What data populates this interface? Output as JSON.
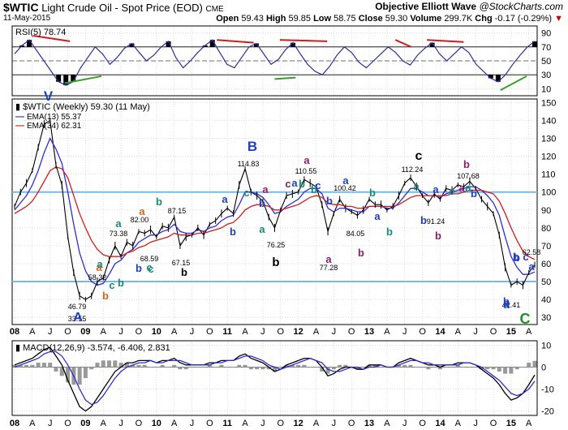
{
  "header": {
    "symbol": "$WTIC",
    "name": "Light Crude Oil - Spot Price (EOD)",
    "exchange": "CME",
    "date": "11-May-2015",
    "brand_prefix": "Objective Elliott Wave",
    "brand_site": "@StockCharts.com",
    "quote": {
      "open_label": "Open",
      "open": "59.43",
      "high_label": "High",
      "high": "59.85",
      "low_label": "Low",
      "low": "58.75",
      "close_label": "Close",
      "close": "59.30",
      "volume_label": "Volume",
      "volume": "299.7K",
      "chg_label": "Chg",
      "chg": "-0.17 (-0.29%)",
      "chg_arrow": "▼",
      "chg_color": "#cc0000"
    }
  },
  "colors": {
    "price": "#000000",
    "ema13": "#2d2dd0",
    "ema34": "#d01c1c",
    "rsi": "#2d2d9e",
    "rsi_fill": "#000000",
    "macd": "#000000",
    "macd_signal": "#2d2dd0",
    "histogram": "#999999",
    "hline": "#7ab8e6",
    "grid": "#c8c8c8",
    "trend_red": "#d01c1c",
    "trend_green": "#3a9e2a",
    "wave_blue": "#1f3fbf",
    "wave_teal": "#1a8a7a",
    "wave_orange": "#d8641c",
    "wave_purple": "#8a1f6f",
    "wave_green": "#2a8a2a",
    "wave_black": "#000000"
  },
  "chart_data": [
    {
      "type": "line",
      "panel": "rsi",
      "title": "RSI(5) 78.74",
      "ylim": [
        0,
        100
      ],
      "yticks": [
        10,
        30,
        50,
        70,
        90
      ],
      "reference_lines": [
        30,
        70
      ],
      "series": [
        {
          "name": "RSI(5)",
          "values": [
            60,
            72,
            80,
            65,
            50,
            35,
            20,
            15,
            20,
            40,
            55,
            70,
            60,
            45,
            55,
            68,
            75,
            62,
            50,
            58,
            70,
            78,
            55,
            40,
            50,
            62,
            72,
            80,
            62,
            45,
            40,
            55,
            70,
            75,
            60,
            45,
            52,
            66,
            76,
            60,
            45,
            35,
            30,
            42,
            58,
            70,
            62,
            48,
            40,
            50,
            60,
            70,
            62,
            50,
            44,
            58,
            68,
            76,
            60,
            50,
            60,
            70,
            62,
            45,
            35,
            25,
            20,
            30,
            45,
            58,
            70,
            78
          ]
        }
      ],
      "last_value": "78.74"
    },
    {
      "type": "line",
      "panel": "price",
      "title": "$WTIC (Weekly) 59.30 (11 May)",
      "ylim": [
        26,
        152
      ],
      "yticks": [
        30,
        40,
        50,
        60,
        70,
        80,
        90,
        100,
        110,
        120,
        130,
        140,
        150
      ],
      "reference_lines": [
        50,
        100
      ],
      "x_dates": [
        "2008-01",
        "2008-02",
        "2008-03",
        "2008-04",
        "2008-05",
        "2008-06",
        "2008-07",
        "2008-08",
        "2008-09",
        "2008-10",
        "2008-11",
        "2008-12",
        "2009-01",
        "2009-02",
        "2009-03",
        "2009-04",
        "2009-05",
        "2009-06",
        "2009-07",
        "2009-08",
        "2009-09",
        "2009-10",
        "2009-11",
        "2009-12",
        "2010-01",
        "2010-02",
        "2010-03",
        "2010-04",
        "2010-05",
        "2010-06",
        "2010-07",
        "2010-08",
        "2010-09",
        "2010-10",
        "2010-11",
        "2010-12",
        "2011-01",
        "2011-02",
        "2011-03",
        "2011-04",
        "2011-05",
        "2011-06",
        "2011-07",
        "2011-08",
        "2011-09",
        "2011-10",
        "2011-11",
        "2011-12",
        "2012-01",
        "2012-02",
        "2012-03",
        "2012-04",
        "2012-05",
        "2012-06",
        "2012-07",
        "2012-08",
        "2012-09",
        "2012-10",
        "2012-11",
        "2012-12",
        "2013-01",
        "2013-02",
        "2013-03",
        "2013-04",
        "2013-05",
        "2013-06",
        "2013-07",
        "2013-08",
        "2013-09",
        "2013-10",
        "2013-11",
        "2013-12",
        "2014-01",
        "2014-02",
        "2014-03",
        "2014-04",
        "2014-05",
        "2014-06",
        "2014-07",
        "2014-08",
        "2014-09",
        "2014-10",
        "2014-11",
        "2014-12",
        "2015-01",
        "2015-02",
        "2015-03",
        "2015-04",
        "2015-05"
      ],
      "series": [
        {
          "name": "$WTIC (Weekly) 59.30 (11 May)",
          "values": [
            92,
            100,
            105,
            112,
            125,
            138,
            140,
            115,
            104,
            75,
            55,
            42,
            40,
            42,
            50,
            52,
            62,
            70,
            64,
            72,
            70,
            78,
            77,
            79,
            75,
            81,
            80,
            86,
            70,
            75,
            76,
            80,
            76,
            82,
            84,
            88,
            91,
            88,
            104,
            113,
            100,
            98,
            95,
            86,
            80,
            90,
            98,
            99,
            100,
            107,
            105,
            103,
            93,
            78,
            88,
            96,
            91,
            89,
            87,
            90,
            96,
            93,
            93,
            90,
            92,
            98,
            105,
            108,
            103,
            98,
            94,
            99,
            96,
            102,
            101,
            104,
            103,
            106,
            102,
            96,
            92,
            88,
            76,
            58,
            48,
            50,
            48,
            55,
            59.3
          ]
        },
        {
          "name": "EMA(13) 55.37",
          "values": [
            90,
            94,
            98,
            104,
            112,
            122,
            130,
            124,
            116,
            100,
            82,
            66,
            56,
            50,
            48,
            49,
            54,
            60,
            62,
            66,
            68,
            72,
            74,
            76,
            76,
            78,
            79,
            82,
            78,
            77,
            77,
            79,
            78,
            80,
            81,
            84,
            86,
            87,
            93,
            100,
            100,
            99,
            97,
            93,
            88,
            89,
            92,
            94,
            96,
            100,
            102,
            102,
            99,
            91,
            89,
            91,
            91,
            90,
            89,
            89,
            92,
            92,
            92,
            91,
            91,
            94,
            98,
            102,
            102,
            100,
            98,
            98,
            97,
            99,
            100,
            101,
            102,
            103,
            103,
            101,
            98,
            94,
            87,
            75,
            64,
            58,
            54,
            54,
            55.37
          ]
        },
        {
          "name": "EMA(34) 62.31",
          "values": [
            88,
            90,
            92,
            95,
            100,
            106,
            112,
            114,
            113,
            108,
            98,
            88,
            80,
            73,
            68,
            65,
            64,
            64,
            64,
            66,
            67,
            69,
            70,
            72,
            73,
            74,
            75,
            77,
            76,
            76,
            76,
            77,
            77,
            78,
            79,
            80,
            82,
            83,
            86,
            90,
            92,
            93,
            93,
            92,
            90,
            90,
            91,
            92,
            93,
            95,
            97,
            98,
            97,
            94,
            93,
            93,
            92,
            92,
            91,
            91,
            92,
            92,
            92,
            92,
            92,
            93,
            95,
            97,
            98,
            98,
            98,
            98,
            98,
            98,
            99,
            99,
            100,
            101,
            101,
            101,
            100,
            99,
            95,
            88,
            80,
            73,
            67,
            64,
            62.31
          ]
        }
      ],
      "ema_labels": [
        "EMA(13) 55.37",
        "EMA(34) 62.31"
      ],
      "annotations": {
        "price_labels": [
          "33.55",
          "46.79",
          "58.32",
          "73.38",
          "82.00",
          "87.15",
          "68.59",
          "67.15",
          "114.83",
          "76.25",
          "110.55",
          "77.28",
          "100.42",
          "84.05",
          "112.24",
          "91.24",
          "107.68",
          "42.41",
          "62.58"
        ],
        "wave_labels": [
          "V",
          "A",
          "a",
          "b",
          "c",
          "a",
          "b",
          "a",
          "b",
          "c",
          "a",
          "b",
          "c",
          "b",
          "B",
          "a",
          "b",
          "c",
          "a",
          "b",
          "a",
          "b",
          "c",
          "a",
          "b",
          "a",
          "b",
          "c",
          "a",
          "b",
          "a",
          "b",
          "b",
          "a",
          "b",
          "c",
          "a",
          "b",
          "a",
          "b",
          "c",
          "a",
          "b",
          "a",
          "b",
          "a",
          "b",
          "c",
          "a",
          "b",
          "b",
          "a",
          "C"
        ]
      }
    },
    {
      "type": "line",
      "panel": "macd",
      "title": "MACD(12,26,9) -3.574, -6.406, 2.831",
      "ylim": [
        -22,
        12
      ],
      "yticks": [
        -20,
        -10,
        0,
        10
      ],
      "reference_lines": [
        0
      ],
      "series": [
        {
          "name": "MACD(12,26,9) -3.574",
          "values": [
            1,
            2,
            3,
            4,
            6,
            8,
            9,
            5,
            1,
            -6,
            -12,
            -18,
            -20,
            -18,
            -14,
            -10,
            -6,
            -2,
            0,
            2,
            2,
            3,
            3,
            3,
            2,
            3,
            3,
            4,
            2,
            1,
            1,
            1,
            1,
            2,
            2,
            3,
            3,
            3,
            5,
            6,
            4,
            3,
            2,
            0,
            -2,
            -1,
            1,
            2,
            3,
            4,
            4,
            3,
            0,
            -4,
            -3,
            -1,
            0,
            0,
            -1,
            -1,
            1,
            1,
            1,
            0,
            0,
            2,
            3,
            4,
            3,
            2,
            1,
            1,
            0,
            1,
            1,
            2,
            2,
            2,
            1,
            -1,
            -3,
            -5,
            -8,
            -12,
            -15,
            -14,
            -12,
            -8,
            -3.574
          ]
        },
        {
          "name": "Signal -6.406",
          "values": [
            0,
            1,
            2,
            3,
            4,
            6,
            7,
            7,
            5,
            1,
            -4,
            -10,
            -15,
            -17,
            -16,
            -13,
            -9,
            -5,
            -2,
            0,
            1,
            2,
            2,
            3,
            2,
            2,
            3,
            3,
            3,
            2,
            1,
            1,
            1,
            1,
            2,
            2,
            3,
            3,
            4,
            5,
            5,
            4,
            3,
            1,
            0,
            -1,
            0,
            1,
            2,
            3,
            4,
            3,
            2,
            -1,
            -2,
            -2,
            -1,
            0,
            0,
            -1,
            0,
            0,
            1,
            0,
            0,
            1,
            2,
            3,
            3,
            2,
            2,
            1,
            1,
            1,
            1,
            1,
            2,
            2,
            1,
            0,
            -2,
            -4,
            -6,
            -9,
            -12,
            -13,
            -12,
            -10,
            -6.406
          ]
        }
      ],
      "histogram": [
        1,
        1,
        1,
        1,
        2,
        2,
        2,
        -2,
        -4,
        -7,
        -8,
        -8,
        -5,
        -1,
        2,
        3,
        3,
        3,
        2,
        2,
        1,
        1,
        1,
        0,
        0,
        1,
        0,
        1,
        -1,
        -1,
        0,
        0,
        0,
        1,
        0,
        1,
        0,
        0,
        1,
        1,
        -1,
        -1,
        -1,
        -1,
        -2,
        0,
        1,
        1,
        1,
        1,
        0,
        0,
        -2,
        -3,
        -1,
        1,
        1,
        0,
        -1,
        0,
        1,
        1,
        0,
        0,
        0,
        1,
        1,
        1,
        0,
        0,
        -1,
        0,
        -1,
        0,
        0,
        1,
        0,
        0,
        0,
        -1,
        -1,
        -1,
        -2,
        -3,
        -3,
        -1,
        0,
        2,
        2.831
      ]
    }
  ],
  "x_axis": {
    "labels": [
      "08",
      "A",
      "J",
      "O",
      "09",
      "A",
      "J",
      "O",
      "10",
      "A",
      "J",
      "O",
      "11",
      "A",
      "J",
      "O",
      "12",
      "A",
      "J",
      "O",
      "13",
      "A",
      "J",
      "O",
      "14",
      "A",
      "J",
      "O",
      "15",
      "A"
    ],
    "bold_labels": [
      "08",
      "09",
      "10",
      "11",
      "12",
      "13",
      "14",
      "15"
    ]
  }
}
